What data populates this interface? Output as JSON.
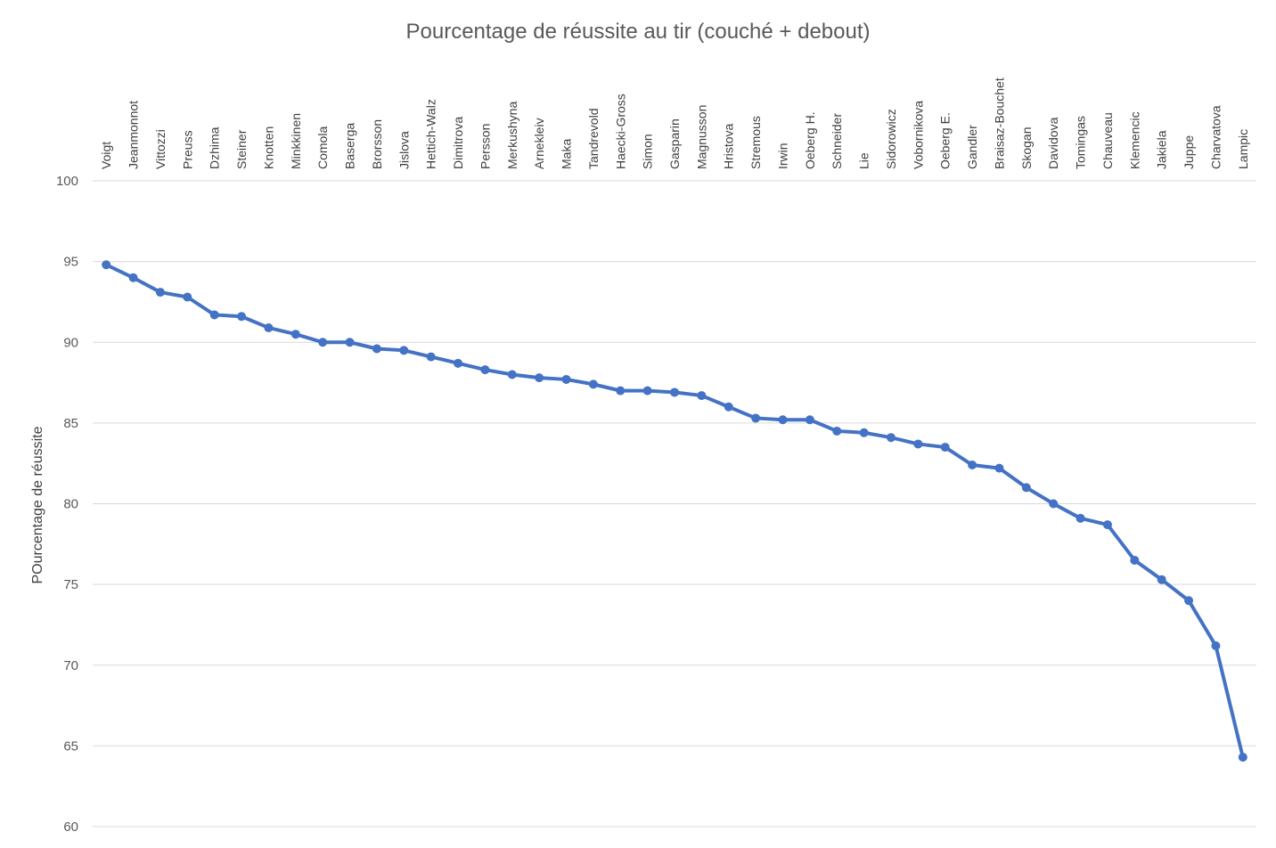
{
  "chart_data": {
    "type": "line",
    "title": "Pourcentage de réussite au tir (couché + debout)",
    "xlabel": "",
    "ylabel": "POurcentage de réussite",
    "ylim": [
      60,
      100
    ],
    "yticks": [
      60,
      65,
      70,
      75,
      80,
      85,
      90,
      95,
      100
    ],
    "grid": true,
    "x_axis_position": "top",
    "color": "#4472c4",
    "categories": [
      "Voigt",
      "Jeanmonnot",
      "Vittozzi",
      "Preuss",
      "Dzhima",
      "Steiner",
      "Knotten",
      "Minkkinen",
      "Comola",
      "Baserga",
      "Brorsson",
      "Jislova",
      "Hettich-Walz",
      "Dimitrova",
      "Persson",
      "Merkushyna",
      "Arnekleiv",
      "Maka",
      "Tandrevold",
      "Haecki-Gross",
      "Simon",
      "Gasparin",
      "Magnusson",
      "Hristova",
      "Stremous",
      "Irwin",
      "Oeberg H.",
      "Schneider",
      "Lie",
      "Sidorowicz",
      "Vobornikova",
      "Oeberg E.",
      "Gandler",
      "Braisaz-Bouchet",
      "Skogan",
      "Davidova",
      "Tomingas",
      "Chauveau",
      "Klemencic",
      "Jakiela",
      "Juppe",
      "Charvatova",
      "Lampic"
    ],
    "series": [
      {
        "name": "",
        "values": [
          94.8,
          94.0,
          93.1,
          92.8,
          91.7,
          91.6,
          90.9,
          90.5,
          90.0,
          90.0,
          89.6,
          89.5,
          89.1,
          88.7,
          88.3,
          88.0,
          87.8,
          87.7,
          87.4,
          87.0,
          87.0,
          86.9,
          86.7,
          86.0,
          85.3,
          85.2,
          85.2,
          84.5,
          84.4,
          84.1,
          83.7,
          83.5,
          82.4,
          82.2,
          81.0,
          80.0,
          79.1,
          78.7,
          76.5,
          75.3,
          74.0,
          71.2,
          64.3
        ]
      }
    ]
  }
}
